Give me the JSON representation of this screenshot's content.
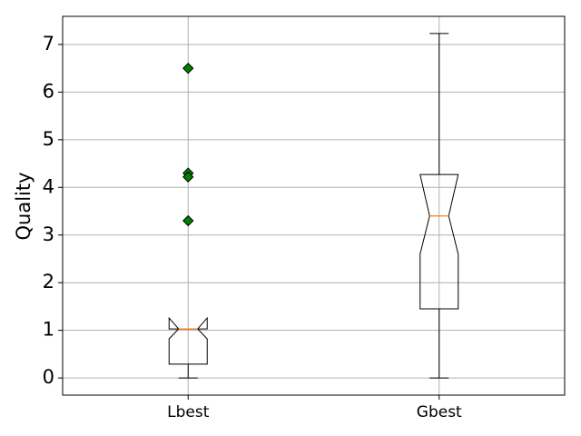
{
  "chart_data": {
    "type": "boxplot",
    "y_label": "Quality",
    "categories": [
      "Lbest",
      "Gbest"
    ],
    "boxes": [
      {
        "whisker_low": 0,
        "q1": 0.29,
        "notch_low": 0.82,
        "median": 1.03,
        "notch_high": 1.26,
        "q3": 1.03,
        "whisker_high": 1.03,
        "fliers": [
          6.5,
          4.3,
          4.22,
          3.3
        ]
      },
      {
        "whisker_low": 0,
        "q1": 1.45,
        "notch_low": 2.6,
        "median": 3.4,
        "notch_high": 4.27,
        "q3": 4.27,
        "whisker_high": 7.23,
        "fliers": []
      }
    ],
    "box_color": "#000000",
    "median_color": "#ff7f0e",
    "flier_color": "#008000",
    "ylim": [
      -0.36,
      7.59
    ],
    "yticks": [
      0,
      1,
      2,
      3,
      4,
      5,
      6,
      7
    ],
    "grid": true
  }
}
